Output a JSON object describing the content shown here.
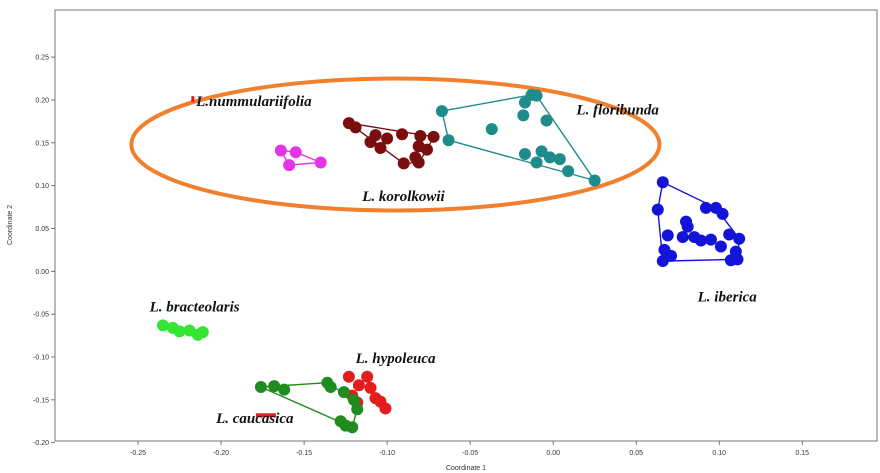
{
  "chart_data": {
    "type": "scatter",
    "xlabel": "Coordinate 1",
    "ylabel": "Coordinate 2",
    "xlim": [
      -0.3,
      0.195
    ],
    "ylim": [
      -0.198,
      0.305
    ],
    "xticks": [
      -0.25,
      -0.2,
      -0.15,
      -0.1,
      -0.05,
      0.0,
      0.05,
      0.1,
      0.15
    ],
    "yticks": [
      -0.2,
      -0.15,
      -0.1,
      -0.05,
      0.0,
      0.05,
      0.1,
      0.15,
      0.2,
      0.25
    ],
    "xtick_labels": [
      "-0.25",
      "-0.20",
      "-0.15",
      "-0.10",
      "-0.05",
      "0.00",
      "0.05",
      "0.10",
      "0.15"
    ],
    "ytick_labels": [
      "-0.20",
      "-0.15",
      "-0.10",
      "-0.05",
      "0.00",
      "0.05",
      "0.10",
      "0.15",
      "0.20",
      "0.25"
    ],
    "grid": false,
    "highlight_ellipse": {
      "color": "#F07F2E",
      "center": [
        -0.095,
        0.148
      ],
      "radius": [
        0.159,
        0.077
      ]
    },
    "series": [
      {
        "name": "L.nummulariifolia",
        "color": "#E31C1C",
        "label_at": [
          -0.215,
          0.193
        ],
        "points": [
          [
            -0.217,
            0.201
          ]
        ],
        "hull": [],
        "marker": "bar-v"
      },
      {
        "name": "L. floribunda",
        "color": "#1F8C8C",
        "label_at": [
          0.014,
          0.183
        ],
        "points": [
          [
            -0.067,
            0.187
          ],
          [
            -0.063,
            0.153
          ],
          [
            -0.037,
            0.166
          ],
          [
            -0.018,
            0.182
          ],
          [
            -0.017,
            0.197
          ],
          [
            -0.013,
            0.206
          ],
          [
            -0.01,
            0.205
          ],
          [
            -0.004,
            0.176
          ],
          [
            -0.017,
            0.137
          ],
          [
            -0.01,
            0.127
          ],
          [
            -0.007,
            0.14
          ],
          [
            -0.002,
            0.133
          ],
          [
            0.004,
            0.131
          ],
          [
            0.009,
            0.117
          ],
          [
            0.025,
            0.106
          ]
        ],
        "hull": [
          [
            -0.067,
            0.187
          ],
          [
            -0.013,
            0.206
          ],
          [
            -0.01,
            0.205
          ],
          [
            0.025,
            0.106
          ],
          [
            -0.063,
            0.153
          ]
        ]
      },
      {
        "name": "L. korolkowii",
        "color": "#7A0E0E",
        "label_at": [
          -0.115,
          0.082
        ],
        "points": [
          [
            -0.123,
            0.173
          ],
          [
            -0.119,
            0.168
          ],
          [
            -0.107,
            0.159
          ],
          [
            -0.1,
            0.155
          ],
          [
            -0.091,
            0.16
          ],
          [
            -0.08,
            0.158
          ],
          [
            -0.072,
            0.157
          ],
          [
            -0.081,
            0.146
          ],
          [
            -0.076,
            0.142
          ],
          [
            -0.083,
            0.133
          ],
          [
            -0.081,
            0.127
          ],
          [
            -0.09,
            0.126
          ],
          [
            -0.11,
            0.151
          ],
          [
            -0.104,
            0.144
          ]
        ],
        "hull": [
          [
            -0.123,
            0.173
          ],
          [
            -0.072,
            0.157
          ],
          [
            -0.076,
            0.142
          ],
          [
            -0.081,
            0.127
          ],
          [
            -0.09,
            0.126
          ],
          [
            -0.123,
            0.173
          ]
        ]
      },
      {
        "name": "",
        "color": "#E633E6",
        "points": [
          [
            -0.164,
            0.141
          ],
          [
            -0.155,
            0.139
          ],
          [
            -0.159,
            0.124
          ],
          [
            -0.14,
            0.127
          ]
        ],
        "hull": [
          [
            -0.164,
            0.141
          ],
          [
            -0.155,
            0.139
          ],
          [
            -0.14,
            0.127
          ],
          [
            -0.159,
            0.124
          ]
        ]
      },
      {
        "name": "L. iberica",
        "color": "#1414D9",
        "label_at": [
          0.087,
          -0.035
        ],
        "points": [
          [
            0.066,
            0.104
          ],
          [
            0.063,
            0.072
          ],
          [
            0.069,
            0.042
          ],
          [
            0.078,
            0.04
          ],
          [
            0.08,
            0.058
          ],
          [
            0.081,
            0.052
          ],
          [
            0.085,
            0.04
          ],
          [
            0.089,
            0.036
          ],
          [
            0.095,
            0.037
          ],
          [
            0.092,
            0.074
          ],
          [
            0.098,
            0.074
          ],
          [
            0.102,
            0.067
          ],
          [
            0.106,
            0.043
          ],
          [
            0.101,
            0.029
          ],
          [
            0.107,
            0.013
          ],
          [
            0.112,
            0.038
          ],
          [
            0.11,
            0.023
          ],
          [
            0.111,
            0.014
          ],
          [
            0.066,
            0.012
          ],
          [
            0.067,
            0.025
          ],
          [
            0.071,
            0.018
          ]
        ],
        "hull": [
          [
            0.066,
            0.104
          ],
          [
            0.098,
            0.074
          ],
          [
            0.112,
            0.038
          ],
          [
            0.111,
            0.014
          ],
          [
            0.066,
            0.012
          ],
          [
            0.063,
            0.072
          ],
          [
            0.066,
            0.104
          ]
        ]
      },
      {
        "name": "L. bracteolaris",
        "color": "#33E633",
        "label_at": [
          -0.243,
          -0.047
        ],
        "points": [
          [
            -0.235,
            -0.063
          ],
          [
            -0.229,
            -0.066
          ],
          [
            -0.225,
            -0.07
          ],
          [
            -0.219,
            -0.069
          ],
          [
            -0.214,
            -0.074
          ],
          [
            -0.211,
            -0.071
          ]
        ],
        "hull": []
      },
      {
        "name": "L. hypoleuca",
        "color": "#E31C1C",
        "label_at": [
          -0.119,
          -0.107
        ],
        "points": [
          [
            -0.123,
            -0.123
          ],
          [
            -0.121,
            -0.145
          ],
          [
            -0.117,
            -0.133
          ],
          [
            -0.112,
            -0.123
          ],
          [
            -0.11,
            -0.136
          ],
          [
            -0.107,
            -0.148
          ],
          [
            -0.104,
            -0.152
          ],
          [
            -0.101,
            -0.16
          ],
          [
            -0.118,
            -0.153
          ]
        ],
        "hull": []
      },
      {
        "name": "L. caucasica",
        "color": "#1E8C1E",
        "label_at": [
          -0.203,
          -0.177
        ],
        "points": [
          [
            -0.176,
            -0.135
          ],
          [
            -0.168,
            -0.134
          ],
          [
            -0.162,
            -0.138
          ],
          [
            -0.136,
            -0.13
          ],
          [
            -0.134,
            -0.135
          ],
          [
            -0.126,
            -0.141
          ],
          [
            -0.12,
            -0.15
          ],
          [
            -0.118,
            -0.161
          ],
          [
            -0.128,
            -0.175
          ],
          [
            -0.125,
            -0.18
          ],
          [
            -0.121,
            -0.182
          ]
        ],
        "hull": [
          [
            -0.176,
            -0.135
          ],
          [
            -0.136,
            -0.13
          ],
          [
            -0.12,
            -0.15
          ],
          [
            -0.118,
            -0.161
          ],
          [
            -0.121,
            -0.182
          ],
          [
            -0.176,
            -0.135
          ]
        ],
        "extra_marker": {
          "at": [
            -0.173,
            -0.168
          ],
          "color": "#E31C1C",
          "shape": "bar-h"
        }
      }
    ]
  }
}
